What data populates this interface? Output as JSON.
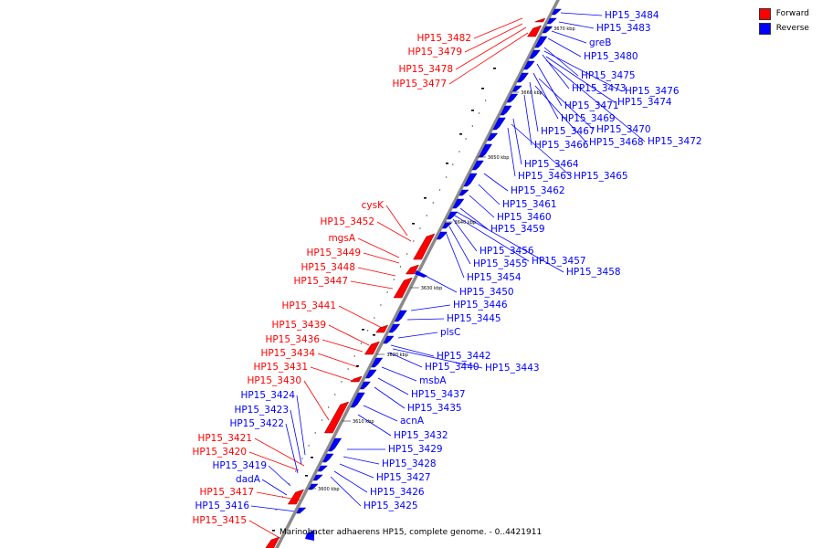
{
  "title": "Marinobacter adhaerens HP15, complete genome. - 0..4421911",
  "legend": [
    {
      "label": "Forward",
      "color": "#ff0000"
    },
    {
      "label": "Reverse",
      "color": "#0000ff"
    }
  ],
  "colors": {
    "forward": "#ff0000",
    "reverse": "#0000ff",
    "backbone": "#808080"
  },
  "scale_labels": [
    "3670 kbp",
    "3660 kbp",
    "3650 kbp",
    "3640 kbp",
    "3630 kbp",
    "3620 kbp",
    "3610 kbp",
    "3600 kbp"
  ],
  "forward_labels": [
    "HP15_3482",
    "HP15_3479",
    "HP15_3478",
    "HP15_3477",
    "cysK",
    "HP15_3452",
    "mgsA",
    "HP15_3449",
    "HP15_3448",
    "HP15_3447",
    "HP15_3441",
    "HP15_3439",
    "HP15_3436",
    "HP15_3434",
    "HP15_3431",
    "HP15_3430",
    "HP15_3421",
    "HP15_3420",
    "HP15_3417",
    "HP15_3415"
  ],
  "reverse_labels": [
    "HP15_3484",
    "HP15_3483",
    "greB",
    "HP15_3480",
    "HP15_3475",
    "HP15_3473",
    "HP15_3476",
    "HP15_3471",
    "HP15_3474",
    "HP15_3469",
    "HP15_3467",
    "HP15_3470",
    "HP15_3466",
    "HP15_3468",
    "HP15_3472",
    "HP15_3464",
    "HP15_3463",
    "HP15_3465",
    "HP15_3462",
    "HP15_3461",
    "HP15_3460",
    "HP15_3459",
    "HP15_3456",
    "HP15_3457",
    "HP15_3455",
    "HP15_3458",
    "HP15_3454",
    "HP15_3450",
    "HP15_3446",
    "HP15_3445",
    "plsC",
    "HP15_3442",
    "HP15_3440",
    "HP15_3443",
    "msbA",
    "HP15_3437",
    "HP15_3435",
    "acnA",
    "HP15_3432",
    "HP15_3429",
    "HP15_3428",
    "HP15_3427",
    "HP15_3426",
    "HP15_3425",
    "HP15_3424",
    "HP15_3423",
    "HP15_3422",
    "HP15_3419",
    "dadA",
    "HP15_3416"
  ]
}
